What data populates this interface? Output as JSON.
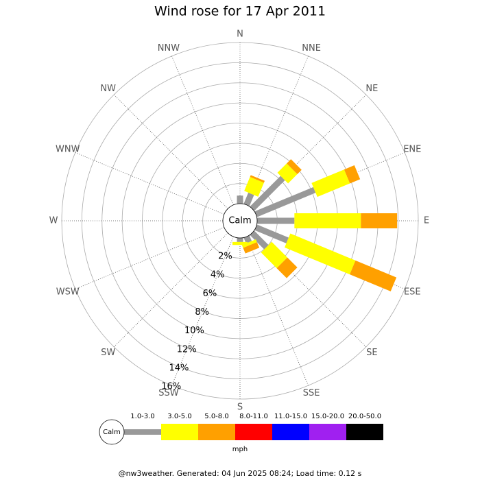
{
  "chart_data": {
    "type": "windrose",
    "title": "Wind rose for 17 Apr 2011",
    "categories": [
      "N",
      "NNE",
      "NE",
      "ENE",
      "E",
      "ESE",
      "SE",
      "SSE",
      "S",
      "SSW",
      "SW",
      "WSW",
      "W",
      "WNW",
      "NW",
      "NNW"
    ],
    "calm_label": "Calm",
    "legend_title": "mph",
    "footer": "@nw3weather. Generated: 04 Jun 2025 08:24; Load time: 0.12 s",
    "rlim": [
      0,
      16
    ],
    "rticks": [
      {
        "value": 2,
        "label": "2%"
      },
      {
        "value": 4,
        "label": "4%"
      },
      {
        "value": 6,
        "label": "6%"
      },
      {
        "value": 8,
        "label": "8%"
      },
      {
        "value": 10,
        "label": "10%"
      },
      {
        "value": 12,
        "label": "12%"
      },
      {
        "value": 14,
        "label": "14%"
      },
      {
        "value": 16,
        "label": "16%"
      }
    ],
    "series": [
      {
        "name": "1.0-3.0",
        "color": "#999999",
        "values": [
          0.8,
          1.2,
          4.3,
          6.3,
          3.7,
          3.4,
          2.0,
          0.6,
          0.4,
          0,
          0,
          0,
          0,
          0,
          0,
          0
        ]
      },
      {
        "name": "3.0-5.0",
        "color": "#ffff00",
        "values": [
          0,
          1.5,
          1.3,
          3.5,
          6.6,
          7.0,
          2.2,
          0.3,
          0.3,
          0,
          0,
          0,
          0,
          0,
          0,
          0
        ]
      },
      {
        "name": "5.0-8.0",
        "color": "#ffa000",
        "values": [
          0,
          0.2,
          0.6,
          1.1,
          3.6,
          4.4,
          1.4,
          0.6,
          0,
          0,
          0,
          0,
          0,
          0,
          0,
          0
        ]
      },
      {
        "name": "8.0-11.0",
        "color": "#ff0000",
        "values": [
          0,
          0,
          0,
          0,
          0,
          0,
          0,
          0,
          0,
          0,
          0,
          0,
          0,
          0,
          0,
          0
        ]
      },
      {
        "name": "11.0-15.0",
        "color": "#0000ff",
        "values": [
          0,
          0,
          0,
          0,
          0,
          0,
          0,
          0,
          0,
          0,
          0,
          0,
          0,
          0,
          0,
          0
        ]
      },
      {
        "name": "15.0-20.0",
        "color": "#a020f0",
        "values": [
          0,
          0,
          0,
          0,
          0,
          0,
          0,
          0,
          0,
          0,
          0,
          0,
          0,
          0,
          0,
          0
        ]
      },
      {
        "name": "20.0-50.0",
        "color": "#000000",
        "values": [
          0,
          0,
          0,
          0,
          0,
          0,
          0,
          0,
          0,
          0,
          0,
          0,
          0,
          0,
          0,
          0
        ]
      }
    ]
  }
}
